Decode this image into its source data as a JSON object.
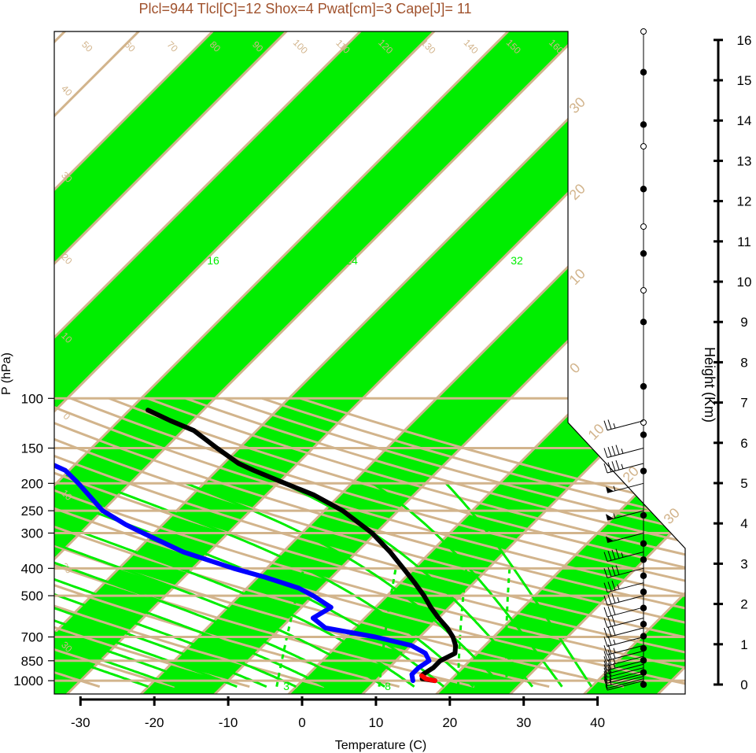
{
  "chart_data": {
    "type": "skew-t",
    "title": "Plcl=944 Tlcl[C]=12 Shox=4 Pwat[cm]=3 Cape[J]= 11",
    "xlabel": "Temperature (C)",
    "ylabel": "P (hPa)",
    "ylabel_right": "Height (Km)",
    "x_ticks": [
      "-30",
      "-20",
      "-10",
      "0",
      "10",
      "20",
      "30",
      "40"
    ],
    "p_ticks": [
      "100",
      "150",
      "200",
      "250",
      "300",
      "400",
      "500",
      "700",
      "850",
      "1000"
    ],
    "height_ticks": [
      "0",
      "1",
      "2",
      "3",
      "4",
      "5",
      "6",
      "7",
      "8",
      "9",
      "10",
      "11",
      "12",
      "13",
      "14",
      "15",
      "16"
    ],
    "isotherm_labels": [
      "-40",
      "-30",
      "-20",
      "-10",
      "0",
      "10",
      "20",
      "30",
      "40",
      "50",
      "60",
      "70",
      "80",
      "90",
      "100",
      "110",
      "120",
      "130",
      "140",
      "150",
      "160"
    ],
    "isotherm_labels_right": [
      "30",
      "20",
      "10",
      "0",
      "10",
      "20",
      "30"
    ],
    "mixing_ratio_labels": [
      "12",
      "16",
      "24",
      "32",
      "3",
      "8"
    ],
    "series": [
      {
        "name": "temperature",
        "color": "#000000",
        "points": [
          [
            1000,
            18.0
          ],
          [
            985,
            16.0
          ],
          [
            950,
            15.5
          ],
          [
            900,
            16.0
          ],
          [
            850,
            16.0
          ],
          [
            800,
            17.0
          ],
          [
            750,
            16.0
          ],
          [
            700,
            14.5
          ],
          [
            650,
            12.5
          ],
          [
            600,
            10.0
          ],
          [
            550,
            7.5
          ],
          [
            500,
            5.0
          ],
          [
            450,
            2.0
          ],
          [
            400,
            -1.5
          ],
          [
            350,
            -5.5
          ],
          [
            300,
            -10.5
          ],
          [
            250,
            -17.5
          ],
          [
            220,
            -23.5
          ],
          [
            200,
            -29.0
          ],
          [
            180,
            -35.0
          ],
          [
            170,
            -38.0
          ],
          [
            150,
            -43.0
          ],
          [
            130,
            -48.5
          ],
          [
            120,
            -53.0
          ],
          [
            110,
            -57.5
          ]
        ]
      },
      {
        "name": "dewpoint",
        "color": "#0000ff",
        "points": [
          [
            1000,
            15.0
          ],
          [
            950,
            14.0
          ],
          [
            900,
            14.0
          ],
          [
            850,
            14.5
          ],
          [
            800,
            13.0
          ],
          [
            750,
            10.0
          ],
          [
            700,
            4.0
          ],
          [
            650,
            -4.0
          ],
          [
            600,
            -7.0
          ],
          [
            550,
            -6.0
          ],
          [
            500,
            -10.0
          ],
          [
            470,
            -13.0
          ],
          [
            430,
            -19.0
          ],
          [
            400,
            -24.5
          ],
          [
            350,
            -33.5
          ],
          [
            300,
            -41.5
          ],
          [
            280,
            -45.0
          ],
          [
            250,
            -50.0
          ],
          [
            200,
            -57.0
          ],
          [
            180,
            -60.5
          ],
          [
            170,
            -63.5
          ],
          [
            150,
            -67.0
          ],
          [
            130,
            -69.5
          ],
          [
            120,
            -73.0
          ],
          [
            110,
            -76.5
          ]
        ]
      },
      {
        "name": "surface",
        "color": "#ff0000",
        "points": [
          [
            1000,
            18.0
          ],
          [
            985,
            16.5
          ],
          [
            960,
            15.5
          ]
        ]
      }
    ],
    "wind_levels_hpa": [
      1000,
      985,
      965,
      945,
      925,
      900,
      875,
      850,
      820,
      785,
      750,
      700,
      650,
      600,
      550,
      500,
      450,
      400,
      350,
      300,
      250,
      200,
      170,
      150,
      120,
      100
    ],
    "wind_speed_kt": [
      5,
      10,
      15,
      15,
      20,
      20,
      20,
      25,
      25,
      25,
      25,
      25,
      30,
      30,
      30,
      35,
      35,
      40,
      45,
      50,
      55,
      55,
      45,
      45,
      25,
      0
    ],
    "height_dots_km": [
      0,
      0.3,
      0.6,
      0.9,
      1.2,
      1.5,
      1.9,
      2.3,
      2.7,
      3.1,
      3.5,
      4.2,
      5.3,
      6.2,
      7.4,
      9.0,
      10.7,
      12.3,
      13.9,
      15.2
    ]
  }
}
